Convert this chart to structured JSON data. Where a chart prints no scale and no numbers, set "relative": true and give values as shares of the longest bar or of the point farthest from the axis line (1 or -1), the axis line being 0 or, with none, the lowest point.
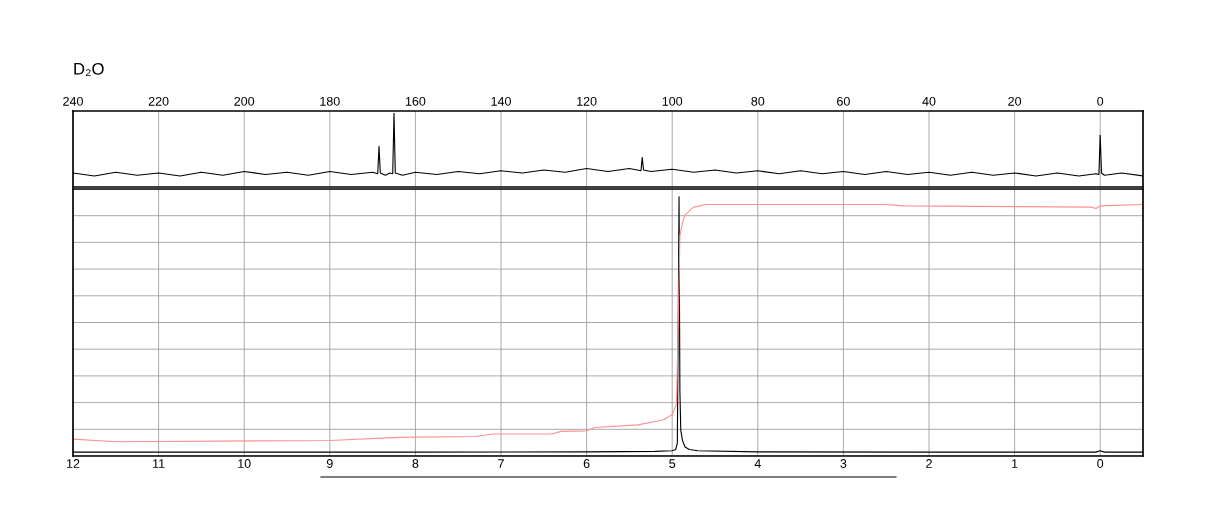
{
  "chart_data": [
    {
      "type": "line",
      "title": "D₂O",
      "relative": true,
      "xlim": [
        240,
        -10
      ],
      "xticks": [
        240,
        220,
        200,
        180,
        160,
        140,
        120,
        100,
        80,
        60,
        40,
        20,
        0
      ],
      "grid": "x",
      "tick_labels": "x",
      "series": [
        {
          "color": "#000000",
          "x": [
            240,
            235,
            230,
            225,
            220,
            215,
            210,
            205,
            200,
            195,
            190,
            185,
            180,
            175,
            170,
            168.8,
            168.5,
            168.2,
            167,
            166,
            165.3,
            165,
            164.7,
            163,
            160,
            155,
            150,
            145,
            140,
            135,
            130,
            125,
            120,
            115,
            110,
            107.3,
            107,
            106.7,
            105,
            100,
            95,
            90,
            85,
            80,
            75,
            70,
            65,
            60,
            55,
            50,
            45,
            40,
            35,
            30,
            25,
            20,
            15,
            10,
            5,
            1,
            0.3,
            0,
            -0.3,
            -1,
            -5,
            -10
          ],
          "values": [
            0.19,
            0.15,
            0.2,
            0.16,
            0.19,
            0.15,
            0.2,
            0.16,
            0.21,
            0.17,
            0.2,
            0.16,
            0.21,
            0.17,
            0.2,
            0.18,
            0.55,
            0.19,
            0.16,
            0.19,
            0.18,
            1,
            0.19,
            0.16,
            0.2,
            0.17,
            0.21,
            0.18,
            0.22,
            0.19,
            0.23,
            0.2,
            0.25,
            0.21,
            0.25,
            0.22,
            0.4,
            0.23,
            0.21,
            0.24,
            0.2,
            0.23,
            0.19,
            0.22,
            0.18,
            0.22,
            0.18,
            0.21,
            0.17,
            0.21,
            0.17,
            0.2,
            0.16,
            0.2,
            0.16,
            0.19,
            0.15,
            0.19,
            0.15,
            0.18,
            0.17,
            0.7,
            0.19,
            0.16,
            0.19,
            0.15
          ]
        }
      ]
    },
    {
      "type": "line",
      "relative": true,
      "xlim": [
        12,
        -0.5
      ],
      "xticks": [
        12,
        11,
        10,
        9,
        8,
        7,
        6,
        5,
        4,
        3,
        2,
        1,
        0
      ],
      "grid": true,
      "tick_labels": "x",
      "series": [
        {
          "color": "#000000",
          "x": [
            12,
            8,
            6,
            5.2,
            5.0,
            4.96,
            4.94,
            4.93,
            4.92,
            4.915,
            4.91,
            4.9,
            4.88,
            4.85,
            4.8,
            4.7,
            4.0,
            2.0,
            0.05,
            0,
            -0.05,
            -0.5
          ],
          "values": [
            0.015,
            0.015,
            0.016,
            0.018,
            0.02,
            0.025,
            0.05,
            0.5,
            1,
            0.6,
            0.25,
            0.1,
            0.06,
            0.035,
            0.025,
            0.02,
            0.016,
            0.015,
            0.015,
            0.02,
            0.015,
            0.015
          ]
        },
        {
          "color": "#ff9090",
          "x": [
            12,
            11.5,
            9,
            8.2,
            7.3,
            7.1,
            6.4,
            6.3,
            6.0,
            5.9,
            5.4,
            5.1,
            5.0,
            4.95,
            4.93,
            4.91,
            4.88,
            4.85,
            4.75,
            4.6,
            4.0,
            2.5,
            2.3,
            0.1,
            0.05,
            0,
            -0.5
          ],
          "values": [
            0.065,
            0.055,
            0.06,
            0.072,
            0.075,
            0.085,
            0.085,
            0.095,
            0.097,
            0.11,
            0.12,
            0.14,
            0.16,
            0.2,
            0.5,
            0.85,
            0.9,
            0.93,
            0.96,
            0.97,
            0.97,
            0.97,
            0.965,
            0.96,
            0.955,
            0.965,
            0.97
          ]
        }
      ]
    }
  ]
}
